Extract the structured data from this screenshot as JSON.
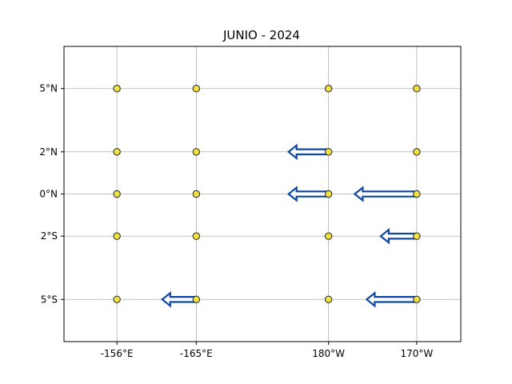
{
  "chart_data": {
    "type": "scatter",
    "title": "JUNIO - 2024",
    "xlabel": "",
    "ylabel": "",
    "grid": true,
    "x_ticks": [
      {
        "label": "-156°E",
        "lon": -156
      },
      {
        "label": "-165°E",
        "lon": -165
      },
      {
        "label": "180°W",
        "lon": 180
      },
      {
        "label": "170°W",
        "lon": 190
      }
    ],
    "y_ticks": [
      {
        "label": "5°N",
        "lat": 5
      },
      {
        "label": "2°N",
        "lat": 2
      },
      {
        "label": "0°N",
        "lat": 0
      },
      {
        "label": "2°S",
        "lat": -2
      },
      {
        "label": "5°S",
        "lat": -5
      }
    ],
    "xlim": [
      -150,
      195
    ],
    "ylim": [
      -7,
      7
    ],
    "marker_color": "#f0e040",
    "arrow_color": "#0d47a1",
    "points": [
      {
        "lon": -156,
        "lat": 5
      },
      {
        "lon": -165,
        "lat": 5
      },
      {
        "lon": 180,
        "lat": 5
      },
      {
        "lon": 190,
        "lat": 5
      },
      {
        "lon": -156,
        "lat": 2
      },
      {
        "lon": -165,
        "lat": 2
      },
      {
        "lon": 180,
        "lat": 2
      },
      {
        "lon": 190,
        "lat": 2
      },
      {
        "lon": -156,
        "lat": 0
      },
      {
        "lon": -165,
        "lat": 0
      },
      {
        "lon": 180,
        "lat": 0
      },
      {
        "lon": 190,
        "lat": 0
      },
      {
        "lon": -156,
        "lat": -2
      },
      {
        "lon": -165,
        "lat": -2
      },
      {
        "lon": 180,
        "lat": -2
      },
      {
        "lon": 190,
        "lat": -2
      },
      {
        "lon": -156,
        "lat": -5
      },
      {
        "lon": -165,
        "lat": -5
      },
      {
        "lon": 180,
        "lat": -5
      },
      {
        "lon": 190,
        "lat": -5
      }
    ],
    "vectors": [
      {
        "lon": 180,
        "lat": 2,
        "u": -1.0,
        "v": 0
      },
      {
        "lon": 180,
        "lat": 0,
        "u": -1.0,
        "v": 0
      },
      {
        "lon": 190,
        "lat": 0,
        "u": -1.55,
        "v": 0
      },
      {
        "lon": 190,
        "lat": -2,
        "u": -0.9,
        "v": 0
      },
      {
        "lon": 190,
        "lat": -5,
        "u": -1.25,
        "v": 0
      },
      {
        "lon": -165,
        "lat": -5,
        "u": -0.85,
        "v": 0
      }
    ]
  }
}
